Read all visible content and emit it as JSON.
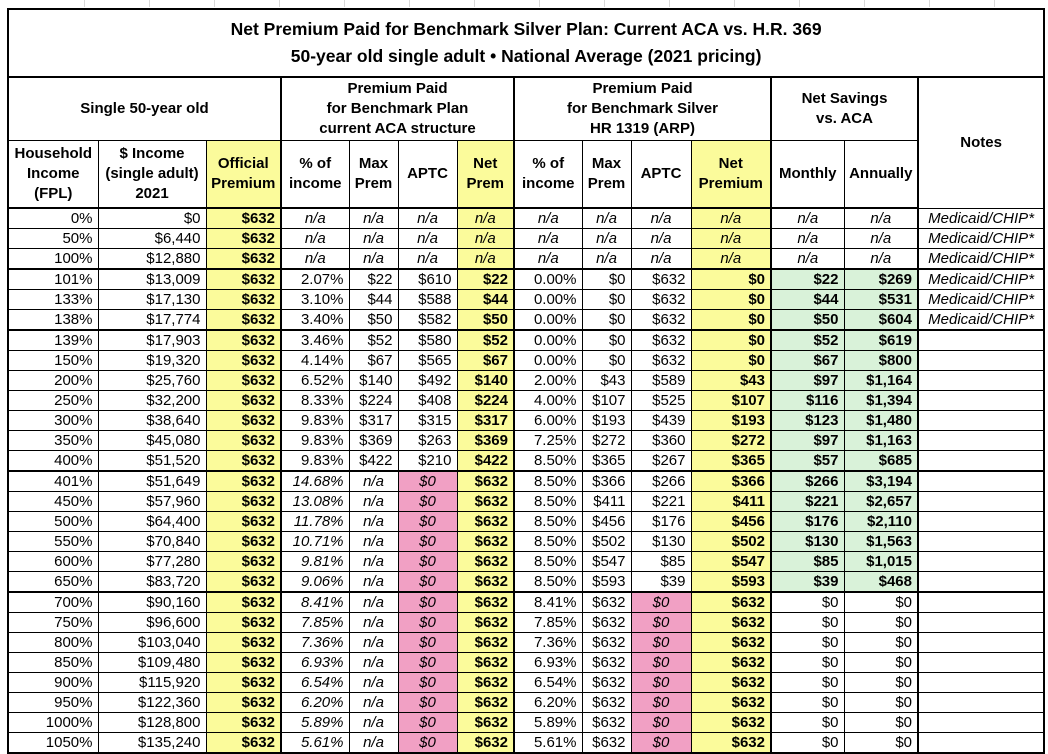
{
  "colors": {
    "highlight-yellow": "#FBFB9B",
    "highlight-pink": "#F1A0C4",
    "highlight-green": "#D9F2D9",
    "border": "#000000",
    "text": "#000000",
    "gridline-hint": "#D9D9D9"
  },
  "chart_data": {
    "type": "table",
    "title": "Net Premium Paid for Benchmark Silver Plan: Current ACA vs. H.R. 369",
    "subtitle": "50-year old single adult • National Average (2021 pricing)",
    "column_groups": [
      "Single 50-year old",
      "Premium Paid\nfor Benchmark Plan\ncurrent ACA structure",
      "Premium Paid\nfor Benchmark Silver\nHR 1319 (ARP)",
      "Net Savings\nvs. ACA",
      "Notes"
    ],
    "columns": [
      "Household\nIncome\n(FPL)",
      "$ Income\n(single adult)\n2021",
      "Official\nPremium",
      "% of\nincome",
      "Max\nPrem",
      "APTC",
      "Net\nPrem",
      "% of\nincome",
      "Max\nPrem",
      "APTC",
      "Net\nPremium",
      "Monthly",
      "Annually",
      "Notes"
    ],
    "rows": [
      {
        "band": "na",
        "group_end": false,
        "cells": [
          "0%",
          "$0",
          "$632",
          "n/a",
          "n/a",
          "n/a",
          "n/a",
          "n/a",
          "n/a",
          "n/a",
          "n/a",
          "n/a",
          "n/a",
          "Medicaid/CHIP*"
        ]
      },
      {
        "band": "na",
        "group_end": false,
        "cells": [
          "50%",
          "$6,440",
          "$632",
          "n/a",
          "n/a",
          "n/a",
          "n/a",
          "n/a",
          "n/a",
          "n/a",
          "n/a",
          "n/a",
          "n/a",
          "Medicaid/CHIP*"
        ]
      },
      {
        "band": "na",
        "group_end": true,
        "cells": [
          "100%",
          "$12,880",
          "$632",
          "n/a",
          "n/a",
          "n/a",
          "n/a",
          "n/a",
          "n/a",
          "n/a",
          "n/a",
          "n/a",
          "n/a",
          "Medicaid/CHIP*"
        ]
      },
      {
        "band": "subsidy",
        "group_end": false,
        "cells": [
          "101%",
          "$13,009",
          "$632",
          "2.07%",
          "$22",
          "$610",
          "$22",
          "0.00%",
          "$0",
          "$632",
          "$0",
          "$22",
          "$269",
          "Medicaid/CHIP*"
        ]
      },
      {
        "band": "subsidy",
        "group_end": false,
        "cells": [
          "133%",
          "$17,130",
          "$632",
          "3.10%",
          "$44",
          "$588",
          "$44",
          "0.00%",
          "$0",
          "$632",
          "$0",
          "$44",
          "$531",
          "Medicaid/CHIP*"
        ]
      },
      {
        "band": "subsidy",
        "group_end": true,
        "cells": [
          "138%",
          "$17,774",
          "$632",
          "3.40%",
          "$50",
          "$582",
          "$50",
          "0.00%",
          "$0",
          "$632",
          "$0",
          "$50",
          "$604",
          "Medicaid/CHIP*"
        ]
      },
      {
        "band": "subsidy",
        "group_end": false,
        "cells": [
          "139%",
          "$17,903",
          "$632",
          "3.46%",
          "$52",
          "$580",
          "$52",
          "0.00%",
          "$0",
          "$632",
          "$0",
          "$52",
          "$619",
          ""
        ]
      },
      {
        "band": "subsidy",
        "group_end": false,
        "cells": [
          "150%",
          "$19,320",
          "$632",
          "4.14%",
          "$67",
          "$565",
          "$67",
          "0.00%",
          "$0",
          "$632",
          "$0",
          "$67",
          "$800",
          ""
        ]
      },
      {
        "band": "subsidy",
        "group_end": false,
        "cells": [
          "200%",
          "$25,760",
          "$632",
          "6.52%",
          "$140",
          "$492",
          "$140",
          "2.00%",
          "$43",
          "$589",
          "$43",
          "$97",
          "$1,164",
          ""
        ]
      },
      {
        "band": "subsidy",
        "group_end": false,
        "cells": [
          "250%",
          "$32,200",
          "$632",
          "8.33%",
          "$224",
          "$408",
          "$224",
          "4.00%",
          "$107",
          "$525",
          "$107",
          "$116",
          "$1,394",
          ""
        ]
      },
      {
        "band": "subsidy",
        "group_end": false,
        "cells": [
          "300%",
          "$38,640",
          "$632",
          "9.83%",
          "$317",
          "$315",
          "$317",
          "6.00%",
          "$193",
          "$439",
          "$193",
          "$123",
          "$1,480",
          ""
        ]
      },
      {
        "band": "subsidy",
        "group_end": false,
        "cells": [
          "350%",
          "$45,080",
          "$632",
          "9.83%",
          "$369",
          "$263",
          "$369",
          "7.25%",
          "$272",
          "$360",
          "$272",
          "$97",
          "$1,163",
          ""
        ]
      },
      {
        "band": "subsidy",
        "group_end": true,
        "cells": [
          "400%",
          "$51,520",
          "$632",
          "9.83%",
          "$422",
          "$210",
          "$422",
          "8.50%",
          "$365",
          "$267",
          "$365",
          "$57",
          "$685",
          ""
        ]
      },
      {
        "band": "cliff",
        "group_end": false,
        "cells": [
          "401%",
          "$51,649",
          "$632",
          "14.68%",
          "n/a",
          "$0",
          "$632",
          "8.50%",
          "$366",
          "$266",
          "$366",
          "$266",
          "$3,194",
          ""
        ]
      },
      {
        "band": "cliff",
        "group_end": false,
        "cells": [
          "450%",
          "$57,960",
          "$632",
          "13.08%",
          "n/a",
          "$0",
          "$632",
          "8.50%",
          "$411",
          "$221",
          "$411",
          "$221",
          "$2,657",
          ""
        ]
      },
      {
        "band": "cliff",
        "group_end": false,
        "cells": [
          "500%",
          "$64,400",
          "$632",
          "11.78%",
          "n/a",
          "$0",
          "$632",
          "8.50%",
          "$456",
          "$176",
          "$456",
          "$176",
          "$2,110",
          ""
        ]
      },
      {
        "band": "cliff",
        "group_end": false,
        "cells": [
          "550%",
          "$70,840",
          "$632",
          "10.71%",
          "n/a",
          "$0",
          "$632",
          "8.50%",
          "$502",
          "$130",
          "$502",
          "$130",
          "$1,563",
          ""
        ]
      },
      {
        "band": "cliff",
        "group_end": false,
        "cells": [
          "600%",
          "$77,280",
          "$632",
          "9.81%",
          "n/a",
          "$0",
          "$632",
          "8.50%",
          "$547",
          "$85",
          "$547",
          "$85",
          "$1,015",
          ""
        ]
      },
      {
        "band": "cliff",
        "group_end": true,
        "cells": [
          "650%",
          "$83,720",
          "$632",
          "9.06%",
          "n/a",
          "$0",
          "$632",
          "8.50%",
          "$593",
          "$39",
          "$593",
          "$39",
          "$468",
          ""
        ]
      },
      {
        "band": "none",
        "group_end": false,
        "cells": [
          "700%",
          "$90,160",
          "$632",
          "8.41%",
          "n/a",
          "$0",
          "$632",
          "8.41%",
          "$632",
          "$0",
          "$632",
          "$0",
          "$0",
          ""
        ]
      },
      {
        "band": "none",
        "group_end": false,
        "cells": [
          "750%",
          "$96,600",
          "$632",
          "7.85%",
          "n/a",
          "$0",
          "$632",
          "7.85%",
          "$632",
          "$0",
          "$632",
          "$0",
          "$0",
          ""
        ]
      },
      {
        "band": "none",
        "group_end": false,
        "cells": [
          "800%",
          "$103,040",
          "$632",
          "7.36%",
          "n/a",
          "$0",
          "$632",
          "7.36%",
          "$632",
          "$0",
          "$632",
          "$0",
          "$0",
          ""
        ]
      },
      {
        "band": "none",
        "group_end": false,
        "cells": [
          "850%",
          "$109,480",
          "$632",
          "6.93%",
          "n/a",
          "$0",
          "$632",
          "6.93%",
          "$632",
          "$0",
          "$632",
          "$0",
          "$0",
          ""
        ]
      },
      {
        "band": "none",
        "group_end": false,
        "cells": [
          "900%",
          "$115,920",
          "$632",
          "6.54%",
          "n/a",
          "$0",
          "$632",
          "6.54%",
          "$632",
          "$0",
          "$632",
          "$0",
          "$0",
          ""
        ]
      },
      {
        "band": "none",
        "group_end": false,
        "cells": [
          "950%",
          "$122,360",
          "$632",
          "6.20%",
          "n/a",
          "$0",
          "$632",
          "6.20%",
          "$632",
          "$0",
          "$632",
          "$0",
          "$0",
          ""
        ]
      },
      {
        "band": "none",
        "group_end": false,
        "cells": [
          "1000%",
          "$128,800",
          "$632",
          "5.89%",
          "n/a",
          "$0",
          "$632",
          "5.89%",
          "$632",
          "$0",
          "$632",
          "$0",
          "$0",
          ""
        ]
      },
      {
        "band": "none",
        "group_end": false,
        "cells": [
          "1050%",
          "$135,240",
          "$632",
          "5.61%",
          "n/a",
          "$0",
          "$632",
          "5.61%",
          "$632",
          "$0",
          "$632",
          "$0",
          "$0",
          ""
        ]
      }
    ]
  }
}
